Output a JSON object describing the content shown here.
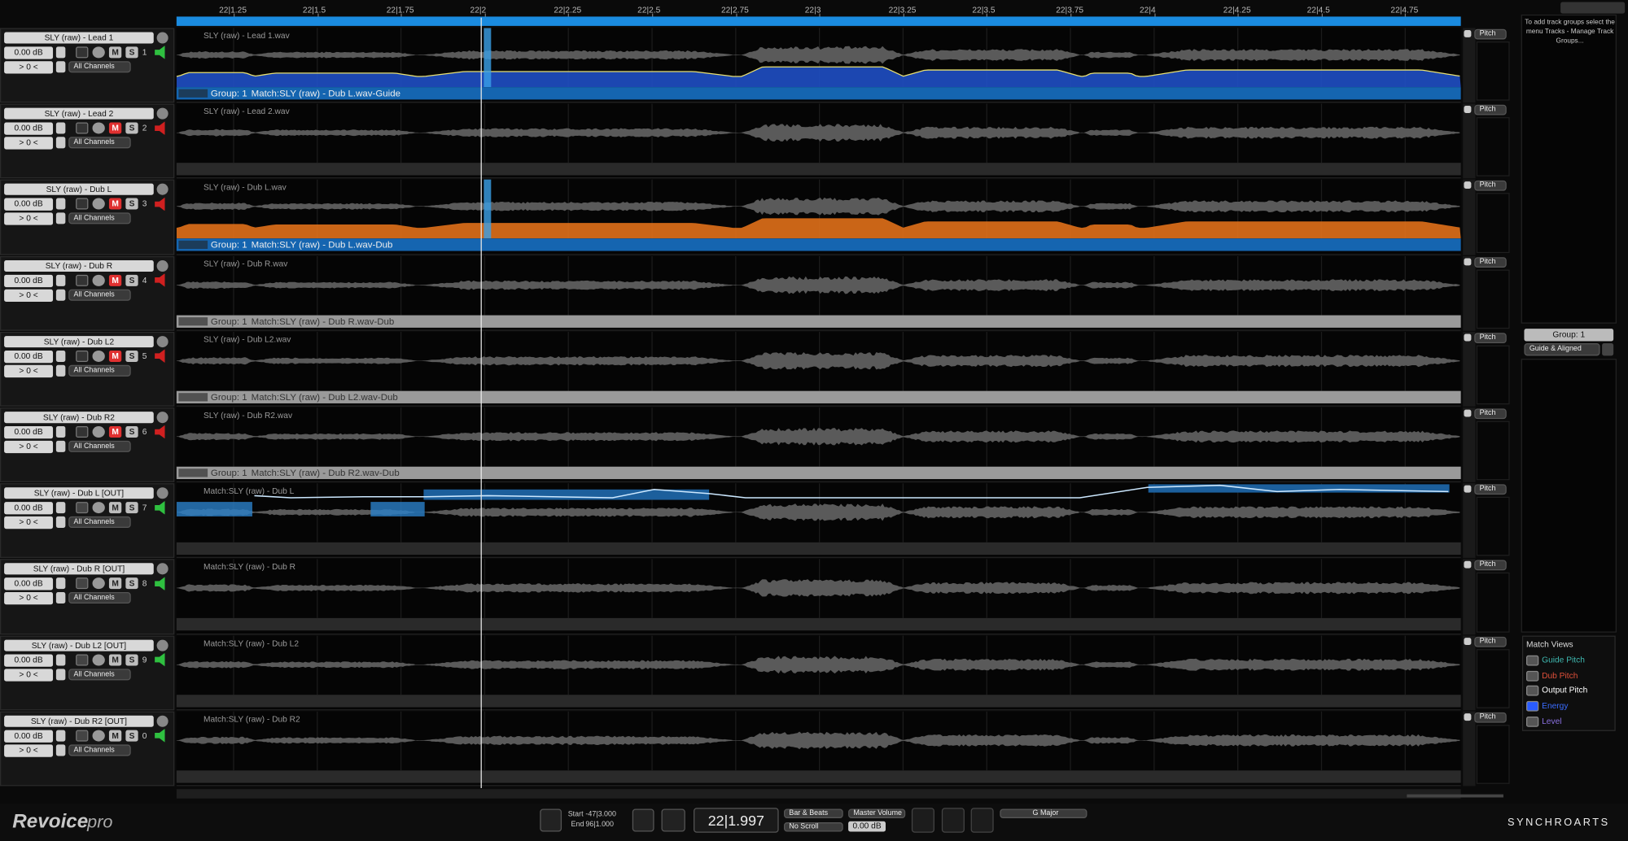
{
  "ruler": {
    "ticks": [
      "22|1.25",
      "22|1.5",
      "22|1.75",
      "22|2",
      "22|2.25",
      "22|2.5",
      "22|2.75",
      "22|3",
      "22|3.25",
      "22|3.5",
      "22|3.75",
      "22|4",
      "22|4.25",
      "22|4.5",
      "22|4.75"
    ]
  },
  "tracks": [
    {
      "name": "SLY (raw) - Lead 1",
      "gain": "0.00 dB",
      "offset": "> 0 <",
      "channels": "All Channels",
      "mute": "M",
      "solo": "S",
      "number": "1",
      "muted": false,
      "clip": "SLY (raw) - Lead 1.wav",
      "pitch": "Pitch",
      "group": "Group: 1",
      "match": "Match:SLY (raw) - Dub L.wav-Guide",
      "group_active": true,
      "energy_color": "#1f4fc4"
    },
    {
      "name": "SLY (raw) - Lead 2",
      "gain": "0.00 dB",
      "offset": "> 0 <",
      "channels": "All Channels",
      "mute": "M",
      "solo": "S",
      "number": "2",
      "muted": true,
      "clip": "SLY (raw) - Lead 2.wav",
      "pitch": "Pitch"
    },
    {
      "name": "SLY (raw) - Dub L",
      "gain": "0.00 dB",
      "offset": "> 0 <",
      "channels": "All Channels",
      "mute": "M",
      "solo": "S",
      "number": "3",
      "muted": true,
      "clip": "SLY (raw) - Dub L.wav",
      "pitch": "Pitch",
      "group": "Group: 1",
      "match": "Match:SLY (raw) - Dub L.wav-Dub",
      "group_active": true,
      "energy_color": "#e0701a"
    },
    {
      "name": "SLY (raw) - Dub R",
      "gain": "0.00 dB",
      "offset": "> 0 <",
      "channels": "All Channels",
      "mute": "M",
      "solo": "S",
      "number": "4",
      "muted": true,
      "clip": "SLY (raw) - Dub R.wav",
      "pitch": "Pitch",
      "group": "Group: 1",
      "match": "Match:SLY (raw) - Dub R.wav-Dub",
      "group_active": false
    },
    {
      "name": "SLY (raw) - Dub L2",
      "gain": "0.00 dB",
      "offset": "> 0 <",
      "channels": "All Channels",
      "mute": "M",
      "solo": "S",
      "number": "5",
      "muted": true,
      "clip": "SLY (raw) - Dub L2.wav",
      "pitch": "Pitch",
      "group": "Group: 1",
      "match": "Match:SLY (raw) - Dub L2.wav-Dub",
      "group_active": false
    },
    {
      "name": "SLY (raw) - Dub R2",
      "gain": "0.00 dB",
      "offset": "> 0 <",
      "channels": "All Channels",
      "mute": "M",
      "solo": "S",
      "number": "6",
      "muted": true,
      "clip": "SLY (raw) - Dub R2.wav",
      "pitch": "Pitch",
      "group": "Group: 1",
      "match": "Match:SLY (raw) - Dub R2.wav-Dub",
      "group_active": false
    },
    {
      "name": "SLY (raw) - Dub L [OUT]",
      "gain": "0.00 dB",
      "offset": "> 0 <",
      "channels": "All Channels",
      "mute": "M",
      "solo": "S",
      "number": "7",
      "muted": false,
      "clip": "Match:SLY (raw) - Dub L",
      "pitch": "Pitch"
    },
    {
      "name": "SLY (raw) - Dub R  [OUT]",
      "gain": "0.00 dB",
      "offset": "> 0 <",
      "channels": "All Channels",
      "mute": "M",
      "solo": "S",
      "number": "8",
      "muted": false,
      "clip": "Match:SLY (raw) - Dub R",
      "pitch": "Pitch"
    },
    {
      "name": "SLY (raw) - Dub L2  [OUT]",
      "gain": "0.00 dB",
      "offset": "> 0 <",
      "channels": "All Channels",
      "mute": "M",
      "solo": "S",
      "number": "9",
      "muted": false,
      "clip": "Match:SLY (raw) - Dub L2",
      "pitch": "Pitch"
    },
    {
      "name": "SLY (raw) - Dub R2  [OUT]",
      "gain": "0.00 dB",
      "offset": "> 0 <",
      "channels": "All Channels",
      "mute": "M",
      "solo": "S",
      "number": "0",
      "muted": false,
      "clip": "Match:SLY (raw) - Dub R2",
      "pitch": "Pitch"
    }
  ],
  "side_panel": {
    "note": "To add track groups select the menu Tracks - Manage Track Groups...",
    "group": "Group: 1",
    "group_mode": "Guide & Aligned",
    "match_views": {
      "title": "Match Views",
      "items": [
        {
          "label": "Guide Pitch",
          "color": "#3fb8b0"
        },
        {
          "label": "Dub Pitch",
          "color": "#e0503a"
        },
        {
          "label": "Output Pitch",
          "color": "#ffffff"
        },
        {
          "label": "Energy",
          "color": "#3a6cff"
        },
        {
          "label": "Level",
          "color": "#8a70e0"
        }
      ]
    }
  },
  "footer": {
    "logo": "Revoice",
    "logo_suffix": "pro",
    "start_label": "Start",
    "start": "-47|3.000",
    "end_label": "End",
    "end": "96|1.000",
    "time": "22|1.997",
    "time_format": "Bar & Beats",
    "scroll": "No Scroll",
    "master_label": "Master Volume",
    "master": "0.00 dB",
    "key": "G Major",
    "brand": "SYNCHROARTS"
  }
}
